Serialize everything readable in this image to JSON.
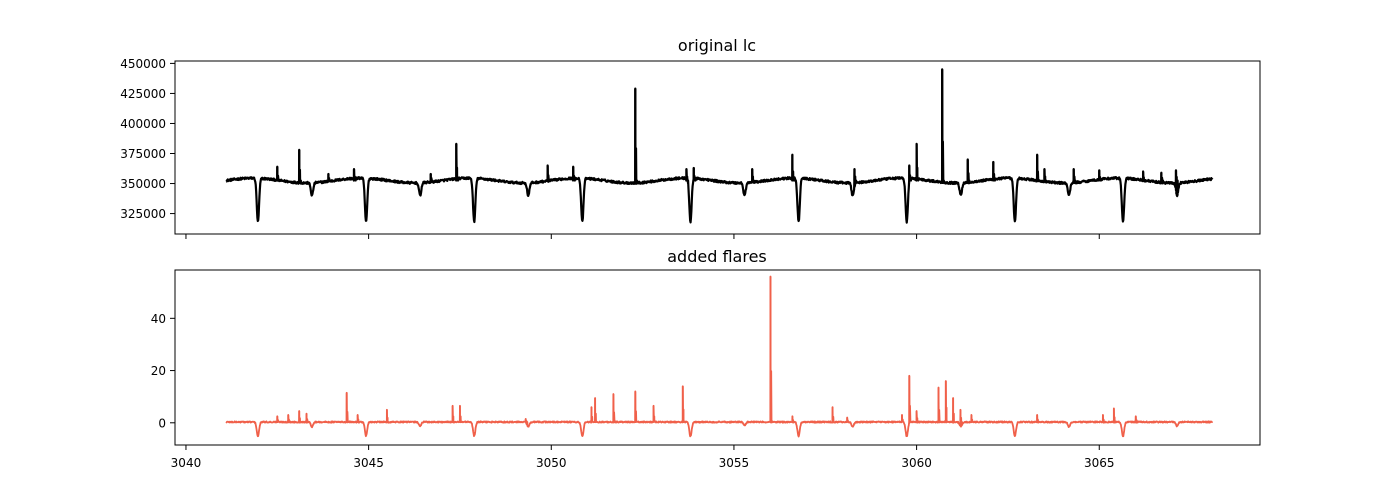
{
  "colors": {
    "top_line": "#000000",
    "bottom_line": "#f0604a",
    "axes": "#000000",
    "background": "#ffffff"
  },
  "chart_data": [
    {
      "type": "line",
      "title": "original lc",
      "xlabel": "",
      "ylabel": "",
      "xlim": [
        3039.7,
        3069.4
      ],
      "ylim": [
        308000,
        452000
      ],
      "grid": false,
      "x_ticklabels_shown": false,
      "x_ticks": [
        3040,
        3045,
        3050,
        3055,
        3060,
        3065
      ],
      "y_ticks": [
        325000,
        350000,
        375000,
        400000,
        425000,
        450000
      ],
      "y_ticklabels": [
        "325000",
        "350000",
        "375000",
        "400000",
        "425000",
        "450000"
      ],
      "baseline": {
        "x_start": 3041.1,
        "x_end": 3068.1,
        "level": 352500,
        "variation_amplitude": 2000,
        "variation_period": 2.96,
        "noise": 900
      },
      "dips": [
        {
          "x": 3041.97,
          "depth": 316000
        },
        {
          "x": 3043.45,
          "depth": 342000
        },
        {
          "x": 3044.93,
          "depth": 316000
        },
        {
          "x": 3046.41,
          "depth": 342000
        },
        {
          "x": 3047.89,
          "depth": 316000
        },
        {
          "x": 3049.37,
          "depth": 342000
        },
        {
          "x": 3050.85,
          "depth": 316000
        },
        {
          "x": 3053.81,
          "depth": 316000
        },
        {
          "x": 3055.29,
          "depth": 342000
        },
        {
          "x": 3056.77,
          "depth": 316000
        },
        {
          "x": 3058.25,
          "depth": 342000
        },
        {
          "x": 3059.73,
          "depth": 316000
        },
        {
          "x": 3061.21,
          "depth": 342000
        },
        {
          "x": 3062.69,
          "depth": 316000
        },
        {
          "x": 3064.17,
          "depth": 342000
        },
        {
          "x": 3065.65,
          "depth": 316000
        },
        {
          "x": 3067.13,
          "depth": 342000
        }
      ],
      "flares": [
        {
          "x": 3042.5,
          "peak": 364000
        },
        {
          "x": 3043.1,
          "peak": 378000
        },
        {
          "x": 3043.9,
          "peak": 358000
        },
        {
          "x": 3044.6,
          "peak": 362000
        },
        {
          "x": 3046.7,
          "peak": 358000
        },
        {
          "x": 3047.4,
          "peak": 383000
        },
        {
          "x": 3049.9,
          "peak": 365000
        },
        {
          "x": 3050.6,
          "peak": 364000
        },
        {
          "x": 3052.3,
          "peak": 429000
        },
        {
          "x": 3053.7,
          "peak": 362000
        },
        {
          "x": 3053.9,
          "peak": 363000
        },
        {
          "x": 3055.5,
          "peak": 362000
        },
        {
          "x": 3056.6,
          "peak": 374000
        },
        {
          "x": 3058.3,
          "peak": 362000
        },
        {
          "x": 3059.8,
          "peak": 365000
        },
        {
          "x": 3060.0,
          "peak": 383000
        },
        {
          "x": 3060.7,
          "peak": 445000
        },
        {
          "x": 3061.4,
          "peak": 370000
        },
        {
          "x": 3062.1,
          "peak": 368000
        },
        {
          "x": 3063.3,
          "peak": 374000
        },
        {
          "x": 3063.5,
          "peak": 362000
        },
        {
          "x": 3064.3,
          "peak": 362000
        },
        {
          "x": 3065.0,
          "peak": 361000
        },
        {
          "x": 3066.2,
          "peak": 360000
        },
        {
          "x": 3066.7,
          "peak": 359000
        },
        {
          "x": 3067.1,
          "peak": 361000
        }
      ]
    },
    {
      "type": "line",
      "title": "added flares",
      "xlabel": "",
      "ylabel": "",
      "xlim": [
        3039.7,
        3069.4
      ],
      "ylim": [
        -8.5,
        58.5
      ],
      "grid": false,
      "x_ticks": [
        3040,
        3045,
        3050,
        3055,
        3060,
        3065
      ],
      "x_ticklabels": [
        "3040",
        "3045",
        "3050",
        "3055",
        "3060",
        "3065"
      ],
      "y_ticks": [
        0,
        20,
        40
      ],
      "y_ticklabels": [
        "0",
        "20",
        "40"
      ],
      "baseline": {
        "x_start": 3041.1,
        "x_end": 3068.1,
        "level": 0.3,
        "noise": 0.25
      },
      "dips": [
        {
          "x": 3041.97,
          "depth": -5.2
        },
        {
          "x": 3043.45,
          "depth": -1.5
        },
        {
          "x": 3044.93,
          "depth": -5.0
        },
        {
          "x": 3046.41,
          "depth": -1.2
        },
        {
          "x": 3047.89,
          "depth": -5.0
        },
        {
          "x": 3049.37,
          "depth": -1.5
        },
        {
          "x": 3050.85,
          "depth": -5.2
        },
        {
          "x": 3053.81,
          "depth": -5.2
        },
        {
          "x": 3055.29,
          "depth": -1.0
        },
        {
          "x": 3056.77,
          "depth": -5.2
        },
        {
          "x": 3058.25,
          "depth": -1.5
        },
        {
          "x": 3059.73,
          "depth": -5.2
        },
        {
          "x": 3061.21,
          "depth": -1.5
        },
        {
          "x": 3062.69,
          "depth": -5.0
        },
        {
          "x": 3064.17,
          "depth": -1.5
        },
        {
          "x": 3065.65,
          "depth": -5.2
        },
        {
          "x": 3067.13,
          "depth": -1.2
        }
      ],
      "flares": [
        {
          "x": 3042.5,
          "peak": 2.5
        },
        {
          "x": 3042.8,
          "peak": 3.0
        },
        {
          "x": 3043.1,
          "peak": 4.5
        },
        {
          "x": 3043.3,
          "peak": 3.5
        },
        {
          "x": 3044.4,
          "peak": 11.5
        },
        {
          "x": 3044.7,
          "peak": 3.0
        },
        {
          "x": 3045.5,
          "peak": 5.0
        },
        {
          "x": 3047.3,
          "peak": 6.5
        },
        {
          "x": 3047.5,
          "peak": 6.5
        },
        {
          "x": 3049.3,
          "peak": 1.5
        },
        {
          "x": 3051.1,
          "peak": 6.0
        },
        {
          "x": 3051.2,
          "peak": 9.5
        },
        {
          "x": 3051.7,
          "peak": 11.0
        },
        {
          "x": 3052.3,
          "peak": 12.0
        },
        {
          "x": 3052.8,
          "peak": 6.5
        },
        {
          "x": 3053.6,
          "peak": 14.0
        },
        {
          "x": 3056.0,
          "peak": 56.0
        },
        {
          "x": 3056.6,
          "peak": 2.5
        },
        {
          "x": 3057.7,
          "peak": 6.0
        },
        {
          "x": 3058.1,
          "peak": 2.0
        },
        {
          "x": 3059.6,
          "peak": 3.0
        },
        {
          "x": 3059.8,
          "peak": 18.0
        },
        {
          "x": 3060.0,
          "peak": 4.5
        },
        {
          "x": 3060.6,
          "peak": 13.5
        },
        {
          "x": 3060.8,
          "peak": 16.0
        },
        {
          "x": 3061.0,
          "peak": 9.5
        },
        {
          "x": 3061.2,
          "peak": 5.0
        },
        {
          "x": 3061.5,
          "peak": 3.0
        },
        {
          "x": 3063.3,
          "peak": 3.0
        },
        {
          "x": 3065.1,
          "peak": 3.0
        },
        {
          "x": 3065.4,
          "peak": 5.5
        },
        {
          "x": 3066.0,
          "peak": 2.5
        }
      ]
    }
  ]
}
